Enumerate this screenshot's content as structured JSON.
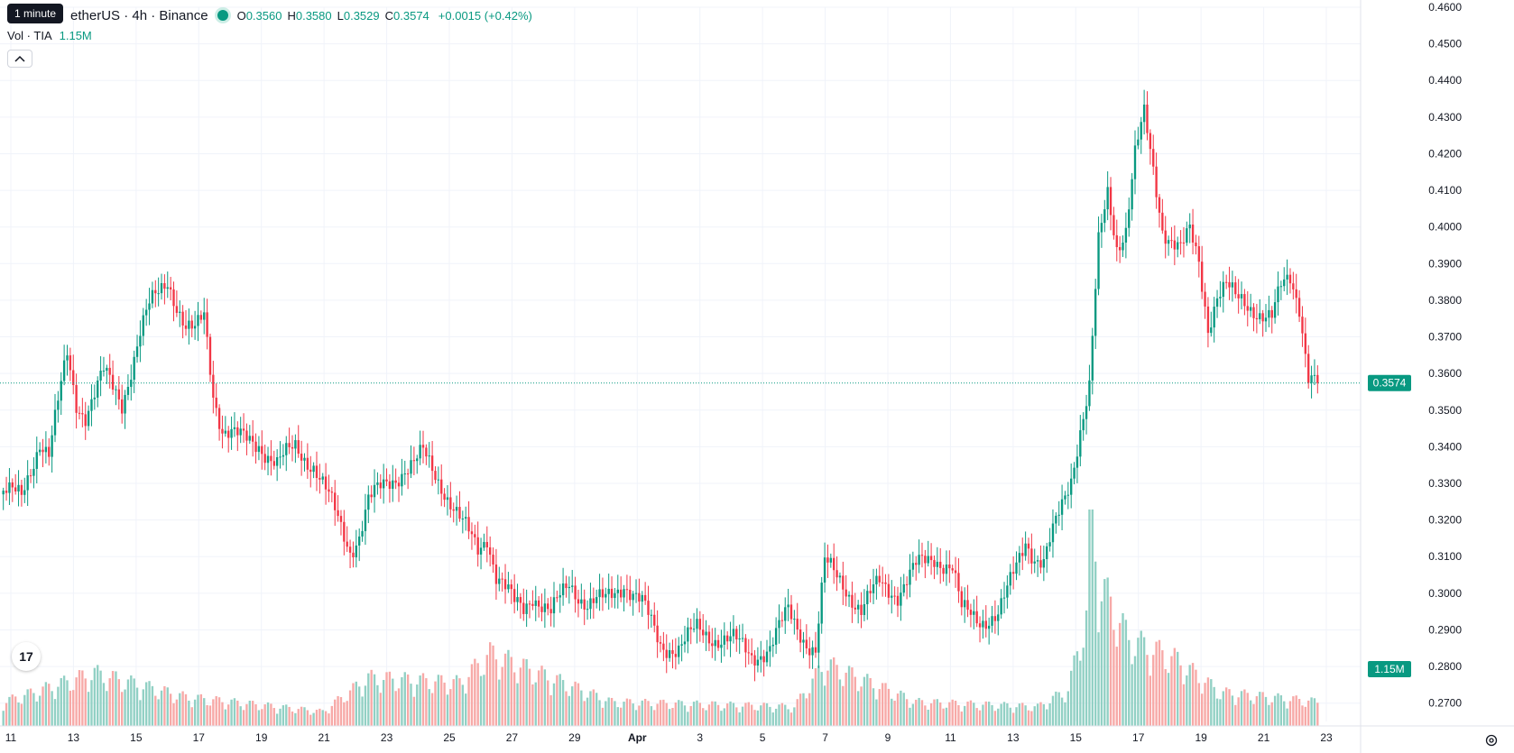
{
  "header": {
    "symbol_text": "etherUS · 4h · Binance",
    "tooltip": "1 minute",
    "ohlc": {
      "o_label": "O",
      "o": "0.3560",
      "h_label": "H",
      "h": "0.3580",
      "l_label": "L",
      "l": "0.3529",
      "c_label": "C",
      "c": "0.3574"
    },
    "change": "+0.0015 (+0.42%)"
  },
  "volume_legend": {
    "label": "Vol · TIA",
    "value": "1.15M"
  },
  "colors": {
    "up": "#089981",
    "down": "#F23645",
    "up_vol": "#91D0C4",
    "down_vol": "#F7A9A7",
    "grid": "#F0F3FA",
    "text": "#131722"
  },
  "icons": {
    "collapse": "chevron-up-icon",
    "logo": "tradingview-logo",
    "settings": "gear-icon"
  },
  "logo_text": "17",
  "chart_data": {
    "type": "candlestick",
    "timeframe": "4h",
    "y_axis": {
      "min": 0.265,
      "max": 0.46,
      "ticks": [
        "0.4600",
        "0.4500",
        "0.4400",
        "0.4300",
        "0.4200",
        "0.4100",
        "0.4000",
        "0.3900",
        "0.3800",
        "0.3700",
        "0.3600",
        "0.3500",
        "0.3400",
        "0.3300",
        "0.3200",
        "0.3100",
        "0.3000",
        "0.2900",
        "0.2800",
        "0.2700"
      ]
    },
    "x_ticks": [
      "11",
      "13",
      "15",
      "17",
      "19",
      "21",
      "23",
      "25",
      "27",
      "29",
      "Apr",
      "3",
      "5",
      "7",
      "9",
      "11",
      "13",
      "15",
      "17",
      "19",
      "21",
      "23"
    ],
    "last_price": "0.3574",
    "last_volume": "1.15M",
    "close_path": [
      [
        0,
        0.328
      ],
      [
        6,
        0.326
      ],
      [
        12,
        0.342
      ],
      [
        15,
        0.338
      ],
      [
        21,
        0.365
      ],
      [
        24,
        0.352
      ],
      [
        27,
        0.349
      ],
      [
        33,
        0.36
      ],
      [
        39,
        0.352
      ],
      [
        45,
        0.371
      ],
      [
        48,
        0.378
      ],
      [
        54,
        0.386
      ],
      [
        57,
        0.379
      ],
      [
        60,
        0.372
      ],
      [
        63,
        0.371
      ],
      [
        66,
        0.376
      ],
      [
        69,
        0.355
      ],
      [
        72,
        0.345
      ],
      [
        78,
        0.342
      ],
      [
        84,
        0.341
      ],
      [
        90,
        0.335
      ],
      [
        96,
        0.34
      ],
      [
        102,
        0.335
      ],
      [
        108,
        0.324
      ],
      [
        114,
        0.312
      ],
      [
        117,
        0.316
      ],
      [
        120,
        0.325
      ],
      [
        126,
        0.33
      ],
      [
        132,
        0.334
      ],
      [
        135,
        0.335
      ],
      [
        138,
        0.338
      ],
      [
        144,
        0.33
      ],
      [
        150,
        0.32
      ],
      [
        156,
        0.312
      ],
      [
        159,
        0.316
      ],
      [
        162,
        0.305
      ],
      [
        168,
        0.297
      ],
      [
        171,
        0.296
      ],
      [
        174,
        0.3
      ],
      [
        180,
        0.294
      ],
      [
        186,
        0.303
      ],
      [
        192,
        0.297
      ],
      [
        198,
        0.298
      ],
      [
        204,
        0.303
      ],
      [
        210,
        0.297
      ],
      [
        216,
        0.286
      ],
      [
        222,
        0.285
      ],
      [
        228,
        0.29
      ],
      [
        234,
        0.288
      ],
      [
        240,
        0.287
      ],
      [
        246,
        0.283
      ],
      [
        252,
        0.285
      ],
      [
        258,
        0.295
      ],
      [
        264,
        0.287
      ],
      [
        267,
        0.284
      ],
      [
        270,
        0.308
      ],
      [
        276,
        0.303
      ],
      [
        282,
        0.295
      ],
      [
        288,
        0.303
      ],
      [
        294,
        0.3
      ],
      [
        300,
        0.307
      ],
      [
        306,
        0.31
      ],
      [
        312,
        0.307
      ],
      [
        315,
        0.295
      ],
      [
        321,
        0.293
      ],
      [
        327,
        0.294
      ],
      [
        330,
        0.3
      ],
      [
        336,
        0.315
      ],
      [
        339,
        0.31
      ],
      [
        342,
        0.308
      ],
      [
        345,
        0.316
      ],
      [
        351,
        0.332
      ],
      [
        354,
        0.345
      ],
      [
        357,
        0.356
      ],
      [
        360,
        0.395
      ],
      [
        363,
        0.409
      ],
      [
        366,
        0.395
      ],
      [
        369,
        0.4
      ],
      [
        372,
        0.42
      ],
      [
        375,
        0.43
      ],
      [
        378,
        0.415
      ],
      [
        381,
        0.4
      ],
      [
        387,
        0.394
      ],
      [
        390,
        0.398
      ],
      [
        393,
        0.39
      ],
      [
        396,
        0.373
      ],
      [
        399,
        0.382
      ],
      [
        402,
        0.384
      ],
      [
        405,
        0.38
      ],
      [
        411,
        0.378
      ],
      [
        417,
        0.375
      ],
      [
        420,
        0.383
      ],
      [
        423,
        0.386
      ],
      [
        426,
        0.379
      ],
      [
        429,
        0.36
      ],
      [
        432,
        0.3574
      ]
    ],
    "volume_profile": [
      [
        0,
        0.1
      ],
      [
        30,
        0.22
      ],
      [
        60,
        0.12
      ],
      [
        105,
        0.06
      ],
      [
        120,
        0.2
      ],
      [
        150,
        0.18
      ],
      [
        160,
        0.3
      ],
      [
        200,
        0.1
      ],
      [
        260,
        0.08
      ],
      [
        270,
        0.26
      ],
      [
        300,
        0.1
      ],
      [
        340,
        0.08
      ],
      [
        350,
        0.15
      ],
      [
        356,
        0.46
      ],
      [
        357,
        1.0
      ],
      [
        360,
        0.6
      ],
      [
        370,
        0.36
      ],
      [
        385,
        0.28
      ],
      [
        400,
        0.14
      ],
      [
        432,
        0.1
      ]
    ],
    "volume_axis_max": "3.2M"
  }
}
